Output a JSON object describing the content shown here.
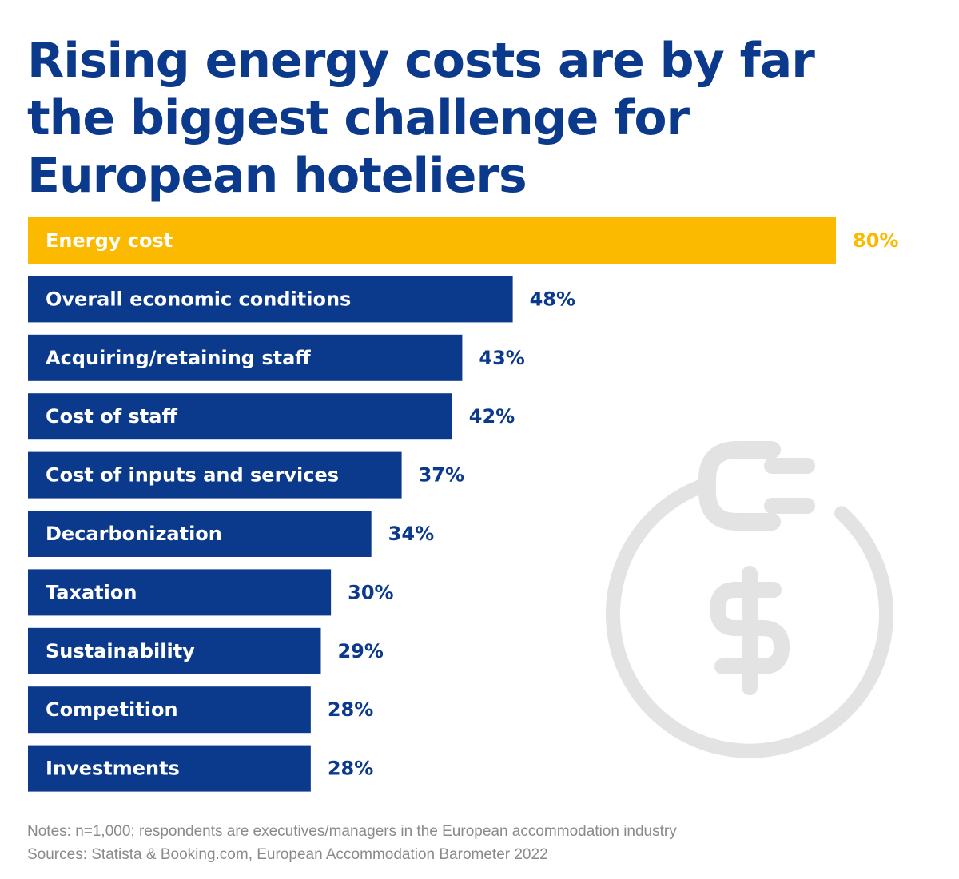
{
  "title_lines": [
    "Rising energy costs are by far",
    "the biggest challenge for",
    "European hoteliers"
  ],
  "chart_data": {
    "type": "bar",
    "orientation": "horizontal",
    "title": "Rising energy costs are by far the biggest challenge for European hoteliers",
    "categories": [
      "Energy cost",
      "Overall economic conditions",
      "Acquiring/retaining staff",
      "Cost of staff",
      "Cost of inputs and services",
      "Decarbonization",
      "Taxation",
      "Sustainability",
      "Competition",
      "Investments"
    ],
    "values": [
      80,
      48,
      43,
      42,
      37,
      34,
      30,
      29,
      28,
      28
    ],
    "value_labels": [
      "80%",
      "48%",
      "43%",
      "42%",
      "37%",
      "34%",
      "30%",
      "29%",
      "28%",
      "28%"
    ],
    "unit": "%",
    "xlim": [
      0,
      80
    ],
    "grid": false,
    "legend": "none",
    "highlight_index": 0,
    "colors": {
      "highlight": "#fbb900",
      "default": "#0b3a8c",
      "bar_text": "#ffffff"
    }
  },
  "notes": "Notes: n=1,000; respondents are executives/managers in the European accommodation industry",
  "sources": "Sources: Statista & Booking.com, European Accommodation Barometer 2022",
  "decoration": {
    "icon": "plug-dollar-icon",
    "color": "#e3e3e3"
  }
}
